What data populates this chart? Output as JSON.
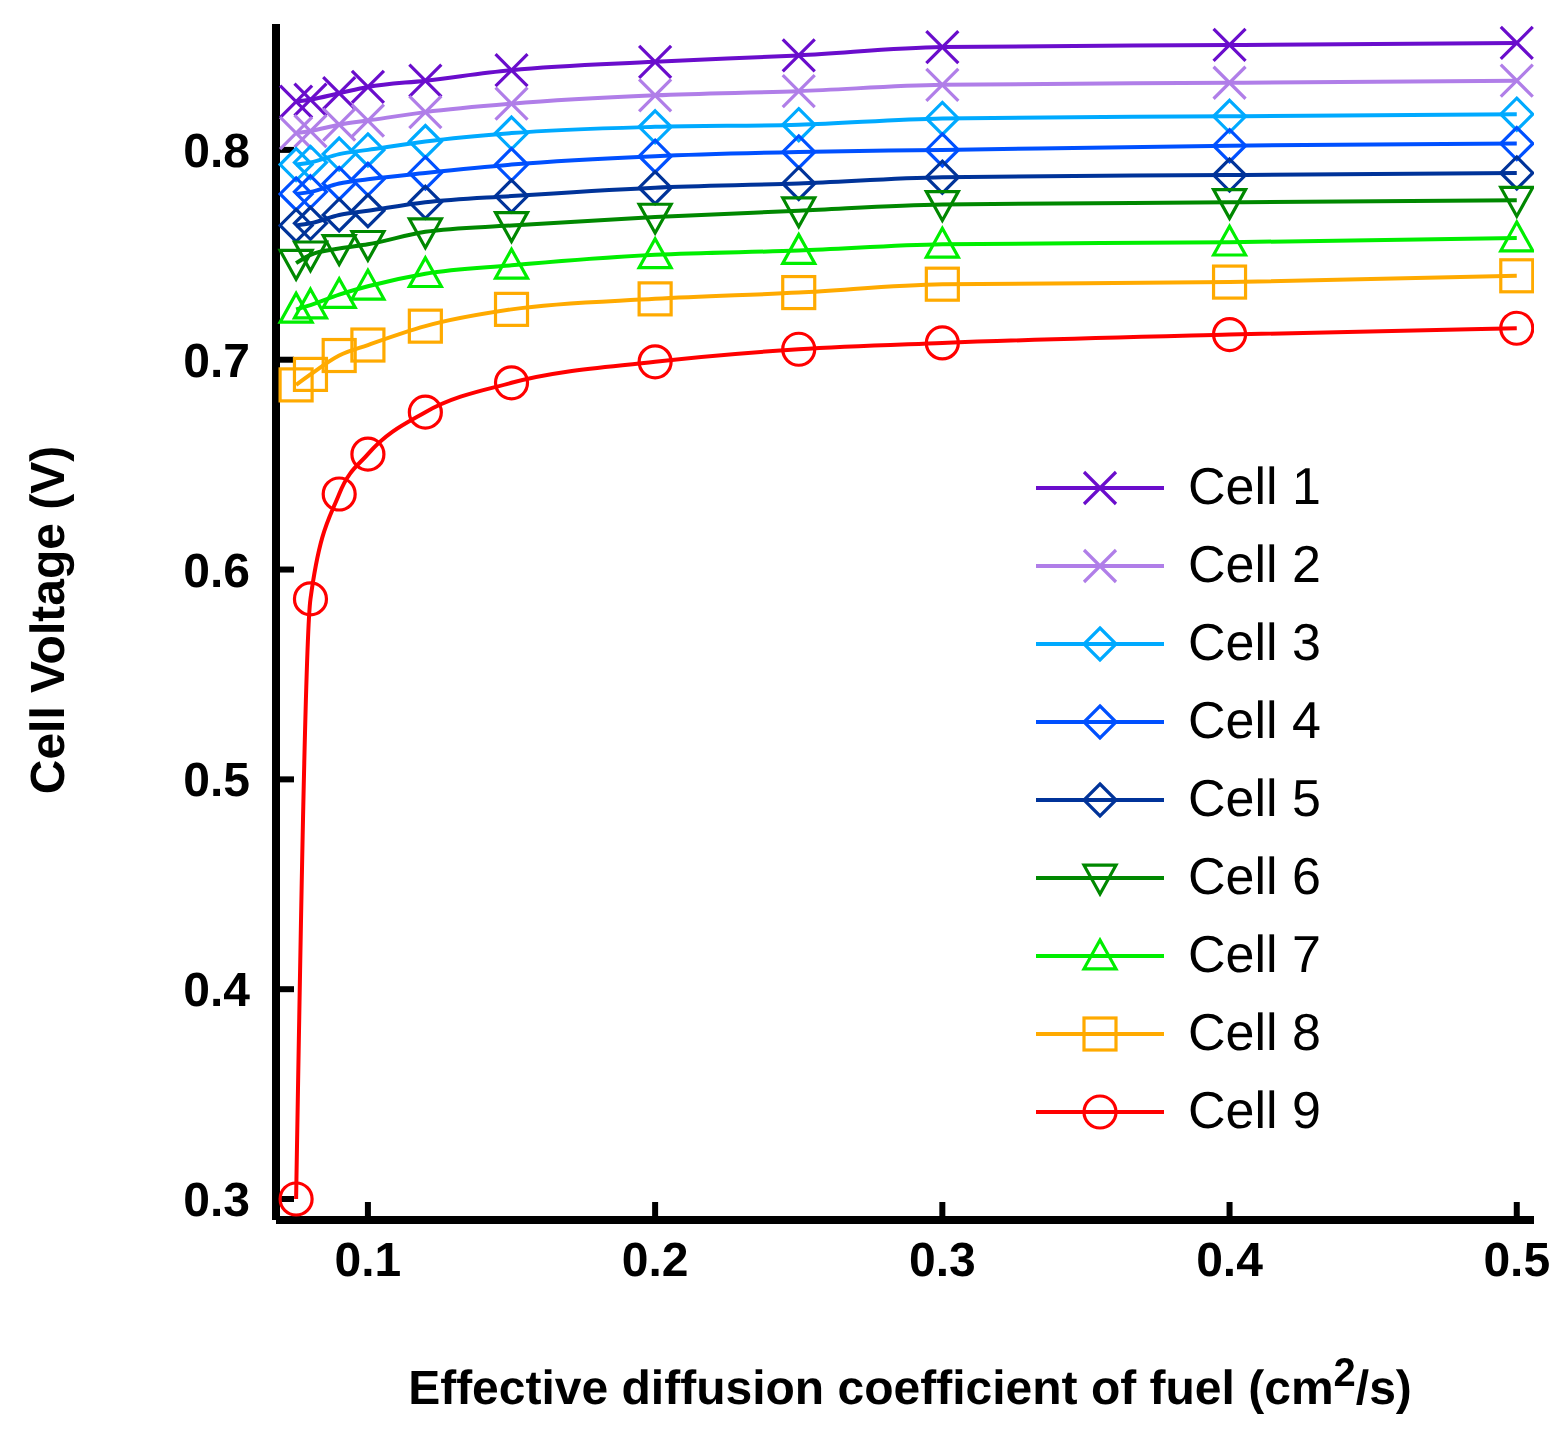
{
  "chart_data": {
    "type": "line",
    "xlabel": "Effective diffusion coefficient of fuel (cm$^{2}$/s)",
    "ylabel": "Cell Voltage (V)",
    "x": [
      0.075,
      0.08,
      0.09,
      0.1,
      0.12,
      0.15,
      0.2,
      0.25,
      0.3,
      0.4,
      0.5
    ],
    "xlim": [
      0.068,
      0.506
    ],
    "xticks": [
      0.1,
      0.2,
      0.3,
      0.4,
      0.5
    ],
    "ylim": [
      0.29,
      0.86
    ],
    "yticks": [
      0.3,
      0.4,
      0.5,
      0.6,
      0.7,
      0.8
    ],
    "legend": "right",
    "line_style": "solid",
    "series": [
      {
        "name": "Cell 1",
        "color": "#6a0dcc",
        "marker": "cross",
        "values": [
          0.823,
          0.824,
          0.827,
          0.83,
          0.833,
          0.838,
          0.842,
          0.845,
          0.849,
          0.85,
          0.851
        ]
      },
      {
        "name": "Cell 2",
        "color": "#b07ee8",
        "marker": "cross",
        "values": [
          0.808,
          0.809,
          0.812,
          0.814,
          0.818,
          0.822,
          0.826,
          0.828,
          0.831,
          0.832,
          0.833
        ]
      },
      {
        "name": "Cell 3",
        "color": "#00aaff",
        "marker": "diamond",
        "values": [
          0.793,
          0.794,
          0.798,
          0.8,
          0.804,
          0.808,
          0.811,
          0.812,
          0.815,
          0.816,
          0.817
        ]
      },
      {
        "name": "Cell 4",
        "color": "#0050ff",
        "marker": "diamond",
        "values": [
          0.779,
          0.78,
          0.784,
          0.786,
          0.789,
          0.793,
          0.797,
          0.799,
          0.8,
          0.802,
          0.803
        ]
      },
      {
        "name": "Cell 5",
        "color": "#003399",
        "marker": "diamond",
        "values": [
          0.764,
          0.765,
          0.769,
          0.771,
          0.775,
          0.778,
          0.782,
          0.784,
          0.787,
          0.788,
          0.789
        ]
      },
      {
        "name": "Cell 6",
        "color": "#008800",
        "marker": "triangle-down",
        "values": [
          0.746,
          0.75,
          0.753,
          0.755,
          0.761,
          0.764,
          0.768,
          0.771,
          0.774,
          0.775,
          0.776
        ]
      },
      {
        "name": "Cell 7",
        "color": "#00ee00",
        "marker": "triangle",
        "values": [
          0.724,
          0.726,
          0.731,
          0.735,
          0.741,
          0.745,
          0.75,
          0.752,
          0.755,
          0.756,
          0.758
        ]
      },
      {
        "name": "Cell 8",
        "color": "#ffaa00",
        "marker": "square",
        "values": [
          0.688,
          0.693,
          0.702,
          0.707,
          0.716,
          0.724,
          0.729,
          0.732,
          0.736,
          0.737,
          0.74
        ]
      },
      {
        "name": "Cell 9",
        "color": "#ff0000",
        "marker": "circle",
        "values": [
          0.3,
          0.586,
          0.636,
          0.655,
          0.675,
          0.689,
          0.699,
          0.705,
          0.708,
          0.712,
          0.715
        ]
      }
    ]
  }
}
